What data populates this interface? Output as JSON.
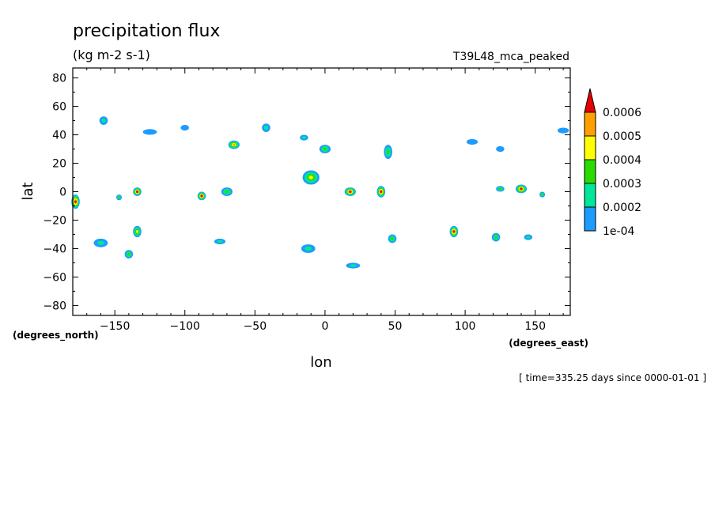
{
  "chart_data": {
    "type": "heatmap",
    "title": "precipitation flux",
    "units": "(kg m-2 s-1)",
    "model": "T39L48_mca_peaked",
    "xlabel": "lon",
    "ylabel": "lat",
    "x_units": "(degrees_east)",
    "y_units": "(degrees_north)",
    "time_note": "[ time=335.25 days since 0000-01-01 ]",
    "xlim": [
      -180,
      175
    ],
    "ylim": [
      -87,
      87
    ],
    "x_ticks": [
      -150,
      -100,
      -50,
      0,
      50,
      100,
      150
    ],
    "y_ticks": [
      -80,
      -60,
      -40,
      -20,
      0,
      20,
      40,
      60,
      80
    ],
    "grid": false,
    "legend_placement": "right",
    "levels": [
      {
        "label": "1e-04",
        "value": 0.0001,
        "color": "#1e9bff"
      },
      {
        "label": "0.0002",
        "value": 0.0002,
        "color": "#00e69b"
      },
      {
        "label": "0.0003",
        "value": 0.0003,
        "color": "#2adc00"
      },
      {
        "label": "0.0004",
        "value": 0.0004,
        "color": "#ffff00"
      },
      {
        "label": "0.0005",
        "value": 0.0005,
        "color": "#ffa000"
      },
      {
        "label": "0.0006",
        "value": 0.0006,
        "color": "#e60000"
      }
    ],
    "cells": [
      {
        "lon": -178,
        "lat": -7,
        "rx": 3,
        "ry": 5,
        "level": 5
      },
      {
        "lon": -158,
        "lat": 50,
        "rx": 3,
        "ry": 3,
        "level": 1
      },
      {
        "lon": -160,
        "lat": -36,
        "rx": 5,
        "ry": 3,
        "level": 1
      },
      {
        "lon": -147,
        "lat": -4,
        "rx": 2,
        "ry": 2,
        "level": 2
      },
      {
        "lon": -134,
        "lat": 0,
        "rx": 3,
        "ry": 3,
        "level": 5
      },
      {
        "lon": -134,
        "lat": -28,
        "rx": 3,
        "ry": 4,
        "level": 3
      },
      {
        "lon": -140,
        "lat": -44,
        "rx": 3,
        "ry": 3,
        "level": 2
      },
      {
        "lon": -125,
        "lat": 42,
        "rx": 5,
        "ry": 2,
        "level": 0
      },
      {
        "lon": -100,
        "lat": 45,
        "rx": 3,
        "ry": 2,
        "level": 0
      },
      {
        "lon": -88,
        "lat": -3,
        "rx": 3,
        "ry": 3,
        "level": 5
      },
      {
        "lon": -70,
        "lat": 0,
        "rx": 4,
        "ry": 3,
        "level": 2
      },
      {
        "lon": -65,
        "lat": 33,
        "rx": 4,
        "ry": 3,
        "level": 4
      },
      {
        "lon": -42,
        "lat": 45,
        "rx": 3,
        "ry": 3,
        "level": 1
      },
      {
        "lon": -10,
        "lat": 10,
        "rx": 6,
        "ry": 5,
        "level": 3
      },
      {
        "lon": 0,
        "lat": 30,
        "rx": 4,
        "ry": 3,
        "level": 2
      },
      {
        "lon": 18,
        "lat": 0,
        "rx": 4,
        "ry": 3,
        "level": 5
      },
      {
        "lon": 40,
        "lat": 0,
        "rx": 3,
        "ry": 4,
        "level": 5
      },
      {
        "lon": 45,
        "lat": 28,
        "rx": 3,
        "ry": 5,
        "level": 2
      },
      {
        "lon": 92,
        "lat": -28,
        "rx": 3,
        "ry": 4,
        "level": 5
      },
      {
        "lon": 48,
        "lat": -33,
        "rx": 3,
        "ry": 3,
        "level": 2
      },
      {
        "lon": 125,
        "lat": 2,
        "rx": 3,
        "ry": 2,
        "level": 2
      },
      {
        "lon": 140,
        "lat": 2,
        "rx": 4,
        "ry": 3,
        "level": 5
      },
      {
        "lon": 155,
        "lat": -2,
        "rx": 2,
        "ry": 2,
        "level": 2
      },
      {
        "lon": 122,
        "lat": -32,
        "rx": 3,
        "ry": 3,
        "level": 2
      },
      {
        "lon": 145,
        "lat": -32,
        "rx": 3,
        "ry": 2,
        "level": 1
      },
      {
        "lon": 20,
        "lat": -52,
        "rx": 5,
        "ry": 2,
        "level": 1
      },
      {
        "lon": -12,
        "lat": -40,
        "rx": 5,
        "ry": 3,
        "level": 1
      },
      {
        "lon": -75,
        "lat": -35,
        "rx": 4,
        "ry": 2,
        "level": 1
      },
      {
        "lon": 170,
        "lat": 43,
        "rx": 4,
        "ry": 2,
        "level": 0
      },
      {
        "lon": 105,
        "lat": 35,
        "rx": 4,
        "ry": 2,
        "level": 0
      },
      {
        "lon": 125,
        "lat": 30,
        "rx": 3,
        "ry": 2,
        "level": 0
      },
      {
        "lon": -15,
        "lat": 38,
        "rx": 3,
        "ry": 2,
        "level": 1
      }
    ]
  }
}
